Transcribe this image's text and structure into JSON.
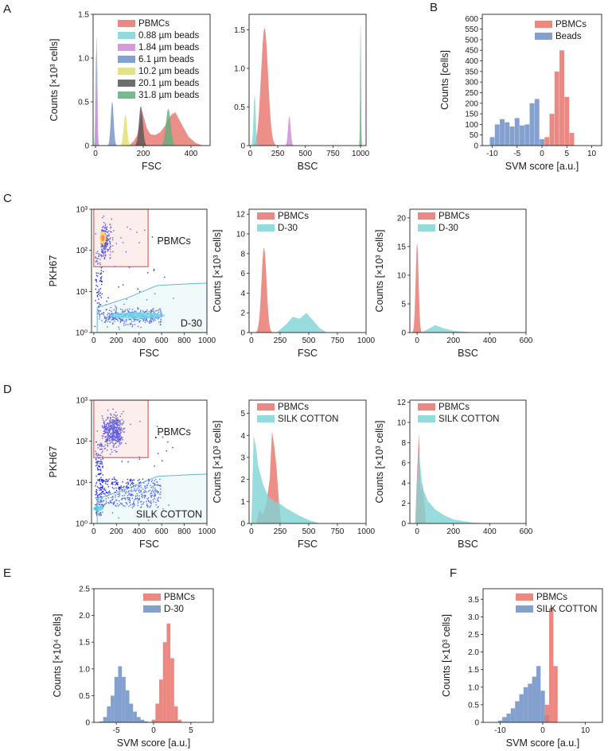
{
  "colors": {
    "pbmc": "#e8736c",
    "beads088": "#7fd3d6",
    "beads184": "#cc88d2",
    "beads61": "#6f8fc6",
    "beads102": "#dede6a",
    "beads201": "#555555",
    "beads318": "#5fae7b",
    "blue": "#6f8fc6",
    "cyan": "#7fd3d6",
    "gate_red": "#e0403a",
    "gate_cyan": "#64b8c8",
    "dots": "#1f2de8"
  },
  "panels": {
    "A": "A",
    "B": "B",
    "C": "C",
    "D": "D",
    "E": "E",
    "F": "F"
  },
  "chart_data": [
    {
      "id": "A1",
      "type": "area",
      "panel": "A",
      "xlabel": "FSC",
      "ylabel": "Counts [×10³ cells]",
      "xlim": [
        -10,
        480
      ],
      "ylim": [
        0,
        1.5
      ],
      "xticks": [
        "0",
        "200",
        "400"
      ],
      "yticks": [
        "0",
        "0.5",
        "1.0",
        "1.5"
      ],
      "legend": [
        "PBMCs",
        "0.88 µm beads",
        "1.84 µm beads",
        "6.1 µm beads",
        "10.2 µm beads",
        "20.1 µm beads",
        "31.8 µm beads"
      ],
      "series": [
        {
          "name": "PBMCs",
          "x": [
            140,
            160,
            175,
            185,
            195,
            205,
            215,
            230,
            250,
            270,
            290,
            305,
            320,
            335,
            350,
            370,
            390,
            420,
            450
          ],
          "values": [
            0,
            0.05,
            0.12,
            0.25,
            0.4,
            0.3,
            0.2,
            0.13,
            0.12,
            0.15,
            0.22,
            0.3,
            0.36,
            0.38,
            0.3,
            0.2,
            0.1,
            0.03,
            0
          ]
        },
        {
          "name": "0.88 µm beads",
          "peak": 2,
          "width": 3,
          "height": 1.05
        },
        {
          "name": "1.84 µm beads",
          "peak": 5,
          "width": 3,
          "height": 1.25
        },
        {
          "name": "6.1 µm beads",
          "peak": 70,
          "width": 6,
          "height": 0.5
        },
        {
          "name": "10.2 µm beads",
          "peak": 125,
          "width": 7,
          "height": 0.35
        },
        {
          "name": "20.1 µm beads",
          "peak": 190,
          "width": 8,
          "height": 0.45
        },
        {
          "name": "31.8 µm beads",
          "peak": 305,
          "width": 10,
          "height": 0.42
        }
      ]
    },
    {
      "id": "A2",
      "type": "area",
      "panel": "A",
      "xlabel": "BSC",
      "ylabel": "",
      "xlim": [
        -10,
        1050
      ],
      "ylim": [
        0,
        1.7
      ],
      "xticks": [
        "0",
        "250",
        "500",
        "750",
        "1000"
      ],
      "yticks": [
        "0",
        "0.5",
        "1.0",
        "1.5"
      ],
      "series": [
        {
          "name": "PBMCs",
          "peak": 130,
          "width": 32,
          "height": 1.52
        },
        {
          "name": "0.88 µm beads",
          "peak": 40,
          "width": 10,
          "height": 0.65
        },
        {
          "name": "1.84 µm beads",
          "peak": 355,
          "width": 12,
          "height": 0.38
        },
        {
          "name": "31.8 µm beads",
          "peak": 1000,
          "width": 4,
          "height": 1.58
        }
      ]
    },
    {
      "id": "B",
      "type": "bar",
      "panel": "B",
      "xlabel": "SVM score [a.u.]",
      "ylabel": "Counts [cells]",
      "xlim": [
        -12,
        12
      ],
      "ylim": [
        0,
        620
      ],
      "xticks": [
        "-10",
        "-5",
        "0",
        "5",
        "10"
      ],
      "yticks": [
        "0",
        "50",
        "100",
        "150",
        "200",
        "250",
        "300",
        "350",
        "400",
        "450",
        "500",
        "550",
        "600"
      ],
      "legend": [
        "PBMCs",
        "Beads"
      ],
      "series": [
        {
          "name": "Beads",
          "x": [
            -10,
            -9,
            -8,
            -7,
            -6,
            -5,
            -4,
            -3,
            -2,
            -1,
            0
          ],
          "values": [
            40,
            100,
            125,
            110,
            90,
            130,
            95,
            100,
            200,
            220,
            30
          ]
        },
        {
          "name": "PBMCs",
          "x": [
            1,
            2,
            3,
            4,
            5,
            6
          ],
          "values": [
            40,
            150,
            350,
            450,
            230,
            60
          ]
        }
      ]
    },
    {
      "id": "C1",
      "type": "scatter",
      "panel": "C",
      "xlabel": "FSC",
      "ylabel": "PKH67",
      "xlim": [
        -20,
        1000
      ],
      "ylim": [
        1,
        1000
      ],
      "xticks": [
        "0",
        "200",
        "400",
        "600",
        "800",
        "1000"
      ],
      "yticks": [
        "10⁰",
        "10¹",
        "10²",
        "10³"
      ],
      "gates": [
        "PBMCs",
        "D-30"
      ]
    },
    {
      "id": "C2",
      "type": "area",
      "panel": "C",
      "xlabel": "FSC",
      "ylabel": "Counts [×10³ cells]",
      "xlim": [
        -20,
        1000
      ],
      "ylim": [
        0,
        12.5
      ],
      "xticks": [
        "0",
        "250",
        "500",
        "750",
        "1000"
      ],
      "yticks": [
        "0",
        "2",
        "4",
        "6",
        "8",
        "10",
        "12"
      ],
      "legend": [
        "PBMCs",
        "D-30"
      ],
      "series": [
        {
          "name": "PBMCs",
          "peak": 110,
          "width": 22,
          "height": 8.6
        },
        {
          "name": "D-30",
          "x": [
            220,
            300,
            360,
            420,
            480,
            540,
            600,
            660
          ],
          "values": [
            0,
            0.8,
            1.6,
            1.4,
            2.0,
            1.2,
            0.4,
            0
          ]
        }
      ]
    },
    {
      "id": "C3",
      "type": "area",
      "panel": "C",
      "xlabel": "BSC",
      "ylabel": "Counts [×10³ cells]",
      "xlim": [
        -40,
        600
      ],
      "ylim": [
        0,
        21.5
      ],
      "xticks": [
        "0",
        "200",
        "400",
        "600"
      ],
      "yticks": [
        "0",
        "5",
        "10",
        "15",
        "20"
      ],
      "legend": [
        "PBMCs",
        "D-30"
      ],
      "series": [
        {
          "name": "PBMCs",
          "peak": 0,
          "width": 8,
          "height": 15.5
        },
        {
          "name": "D-30",
          "x": [
            20,
            60,
            100,
            140,
            200,
            300,
            400
          ],
          "values": [
            0,
            0.6,
            1.3,
            0.8,
            0.3,
            0.05,
            0
          ]
        }
      ]
    },
    {
      "id": "D1",
      "type": "scatter",
      "panel": "D",
      "xlabel": "FSC",
      "ylabel": "PKH67",
      "xlim": [
        -20,
        1000
      ],
      "ylim": [
        1,
        1000
      ],
      "xticks": [
        "0",
        "200",
        "400",
        "600",
        "800",
        "1000"
      ],
      "yticks": [
        "10⁰",
        "10¹",
        "10²",
        "10³"
      ],
      "gates": [
        "PBMCs",
        "SILK COTTON"
      ]
    },
    {
      "id": "D2",
      "type": "area",
      "panel": "D",
      "xlabel": "FSC",
      "ylabel": "Counts [×10³ cells]",
      "xlim": [
        -20,
        1000
      ],
      "ylim": [
        0,
        5.6
      ],
      "xticks": [
        "0",
        "250",
        "500",
        "750",
        "1000"
      ],
      "yticks": [
        "0",
        "1",
        "2",
        "3",
        "4",
        "5"
      ],
      "legend": [
        "PBMCs",
        "SILK COTTON"
      ],
      "series": [
        {
          "name": "PBMCs",
          "x": [
            40,
            70,
            100,
            130,
            160,
            180,
            200,
            220,
            240,
            260
          ],
          "values": [
            0,
            0.6,
            0.4,
            0.9,
            2.0,
            4.2,
            3.5,
            2.5,
            1.0,
            0
          ]
        },
        {
          "name": "SILK COTTON",
          "x": [
            0,
            20,
            40,
            60,
            100,
            150,
            200,
            250,
            300,
            400,
            500,
            600
          ],
          "values": [
            0,
            4.0,
            3.5,
            2.6,
            1.8,
            1.2,
            1.0,
            0.9,
            0.7,
            0.4,
            0.15,
            0
          ]
        }
      ]
    },
    {
      "id": "D3",
      "type": "area",
      "panel": "D",
      "xlabel": "BSC",
      "ylabel": "Counts [×10³ cells]",
      "xlim": [
        -40,
        600
      ],
      "ylim": [
        0,
        12.2
      ],
      "xticks": [
        "0",
        "200",
        "400",
        "600"
      ],
      "yticks": [
        "0",
        "2",
        "4",
        "6",
        "8",
        "10",
        "12"
      ],
      "legend": [
        "PBMCs",
        "SILK COTTON"
      ],
      "series": [
        {
          "name": "PBMCs",
          "x": [
            -10,
            0,
            10,
            20,
            30,
            40,
            50
          ],
          "values": [
            0,
            5,
            9,
            3,
            4,
            2,
            0
          ]
        },
        {
          "name": "SILK COTTON",
          "x": [
            -10,
            0,
            10,
            30,
            60,
            100,
            150,
            200,
            300,
            400
          ],
          "values": [
            0,
            4,
            7,
            3.5,
            2.2,
            1.4,
            0.8,
            0.4,
            0.1,
            0
          ]
        }
      ]
    },
    {
      "id": "E",
      "type": "bar",
      "panel": "E",
      "xlabel": "SVM score [a.u.]",
      "ylabel": "Counts [×10⁴ cells]",
      "xlim": [
        -8,
        8
      ],
      "ylim": [
        0,
        2.5
      ],
      "xticks": [
        "-5",
        "0",
        "5"
      ],
      "yticks": [
        "0",
        "0.5",
        "1.0",
        "1.5",
        "2.0",
        "2.5"
      ],
      "legend": [
        "PBMCs",
        "D-30"
      ],
      "series": [
        {
          "name": "D-30",
          "x": [
            -7,
            -6.5,
            -6,
            -5.5,
            -5,
            -4.5,
            -4,
            -3.5,
            -3,
            -2.5,
            -2,
            -1.5,
            -1
          ],
          "values": [
            0.02,
            0.1,
            0.3,
            0.5,
            0.85,
            1.05,
            0.85,
            0.6,
            0.35,
            0.2,
            0.1,
            0.05,
            0.02
          ]
        },
        {
          "name": "PBMCs",
          "x": [
            0,
            0.5,
            1,
            1.5,
            2,
            2.5,
            3,
            3.5
          ],
          "values": [
            0.05,
            0.35,
            0.8,
            1.5,
            1.85,
            1.2,
            0.3,
            0.05
          ]
        }
      ]
    },
    {
      "id": "F",
      "type": "bar",
      "panel": "F",
      "xlabel": "SVM score [a.u.]",
      "ylabel": "Counts [×10³ cells]",
      "xlim": [
        -14,
        14
      ],
      "ylim": [
        0,
        3.8
      ],
      "xticks": [
        "-10",
        "0",
        "10"
      ],
      "yticks": [
        "0",
        "0.5",
        "1.0",
        "1.5",
        "2.0",
        "2.5",
        "3.0",
        "3.5"
      ],
      "legend": [
        "PBMCs",
        "SILK COTTON"
      ],
      "series": [
        {
          "name": "SILK COTTON",
          "x": [
            -10,
            -9,
            -8,
            -7,
            -6,
            -5,
            -4,
            -3,
            -2,
            -1,
            0,
            1
          ],
          "values": [
            0.05,
            0.15,
            0.25,
            0.4,
            0.6,
            0.8,
            1.0,
            1.1,
            1.3,
            1.6,
            0.9,
            0.2
          ]
        },
        {
          "name": "PBMCs",
          "x": [
            1,
            2,
            3
          ],
          "values": [
            0.5,
            3.25,
            1.6
          ]
        }
      ]
    }
  ]
}
